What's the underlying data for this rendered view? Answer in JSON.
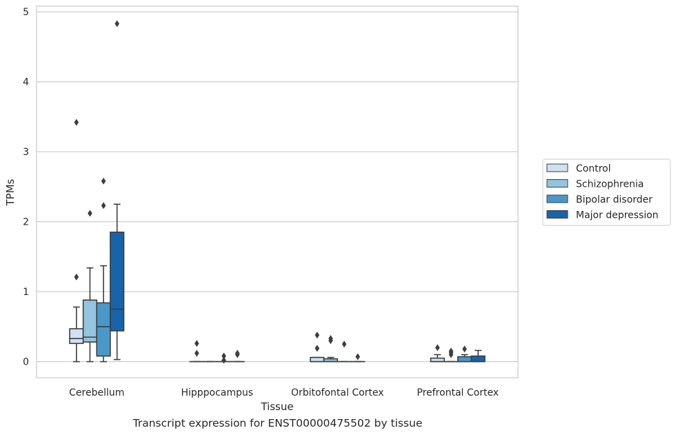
{
  "caption": "Transcript expression for ENST00000475502 by tissue",
  "chart_data": {
    "type": "box",
    "xlabel": "Tissue",
    "ylabel": "TPMs",
    "ylim": [
      -0.23,
      5.08
    ],
    "yticks": [
      0,
      1,
      2,
      3,
      4,
      5
    ],
    "grid": "horizontal",
    "legend_position": "right",
    "categories": [
      "Cerebellum",
      "Hipppocampus",
      "Orbitofontal Cortex",
      "Prefrontal Cortex"
    ],
    "series": [
      {
        "name": "Control",
        "color": "#d0e1f2",
        "boxes": [
          {
            "whislo": 0.0,
            "q1": 0.26,
            "med": 0.33,
            "q3": 0.47,
            "whishi": 0.78,
            "fliers": [
              1.21,
              3.42
            ]
          },
          {
            "whislo": 0.0,
            "q1": 0.0,
            "med": 0.0,
            "q3": 0.0,
            "whishi": 0.0,
            "fliers": [
              0.12,
              0.26
            ]
          },
          {
            "whislo": 0.0,
            "q1": 0.0,
            "med": 0.0,
            "q3": 0.06,
            "whishi": 0.06,
            "fliers": [
              0.19,
              0.38
            ]
          },
          {
            "whislo": 0.0,
            "q1": 0.0,
            "med": 0.0,
            "q3": 0.05,
            "whishi": 0.1,
            "fliers": [
              0.2
            ]
          }
        ]
      },
      {
        "name": "Schizophrenia",
        "color": "#94c4df",
        "boxes": [
          {
            "whislo": 0.0,
            "q1": 0.28,
            "med": 0.35,
            "q3": 0.88,
            "whishi": 1.34,
            "fliers": [
              2.12
            ]
          },
          {
            "whislo": 0.0,
            "q1": 0.0,
            "med": 0.0,
            "q3": 0.0,
            "whishi": 0.0,
            "fliers": []
          },
          {
            "whislo": 0.0,
            "q1": 0.0,
            "med": 0.0,
            "q3": 0.04,
            "whishi": 0.06,
            "fliers": [
              0.3,
              0.33
            ]
          },
          {
            "whislo": 0.0,
            "q1": 0.0,
            "med": 0.0,
            "q3": 0.0,
            "whishi": 0.0,
            "fliers": [
              0.1,
              0.13,
              0.15
            ]
          }
        ]
      },
      {
        "name": "Bipolar disorder",
        "color": "#4a98c9",
        "boxes": [
          {
            "whislo": 0.0,
            "q1": 0.08,
            "med": 0.5,
            "q3": 0.84,
            "whishi": 1.37,
            "fliers": [
              2.23,
              2.58
            ]
          },
          {
            "whislo": 0.0,
            "q1": 0.0,
            "med": 0.0,
            "q3": 0.0,
            "whishi": 0.0,
            "fliers": [
              0.02,
              0.08
            ]
          },
          {
            "whislo": 0.0,
            "q1": 0.0,
            "med": 0.0,
            "q3": 0.0,
            "whishi": 0.0,
            "fliers": [
              0.25
            ]
          },
          {
            "whislo": 0.0,
            "q1": 0.0,
            "med": 0.0,
            "q3": 0.07,
            "whishi": 0.1,
            "fliers": [
              0.18
            ]
          }
        ]
      },
      {
        "name": "Major depression",
        "color": "#1764ab",
        "boxes": [
          {
            "whislo": 0.03,
            "q1": 0.44,
            "med": 0.75,
            "q3": 1.85,
            "whishi": 2.25,
            "fliers": [
              4.83
            ]
          },
          {
            "whislo": 0.0,
            "q1": 0.0,
            "med": 0.0,
            "q3": 0.0,
            "whishi": 0.0,
            "fliers": [
              0.1,
              0.12
            ]
          },
          {
            "whislo": 0.0,
            "q1": 0.0,
            "med": 0.0,
            "q3": 0.0,
            "whishi": 0.0,
            "fliers": [
              0.07
            ]
          },
          {
            "whislo": 0.0,
            "q1": 0.0,
            "med": 0.0,
            "q3": 0.08,
            "whishi": 0.16,
            "fliers": []
          }
        ]
      }
    ]
  }
}
